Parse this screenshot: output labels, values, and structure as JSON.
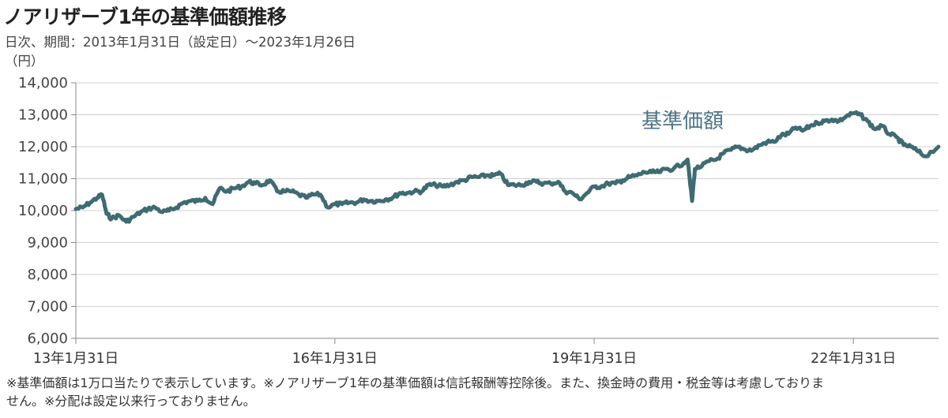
{
  "header": {
    "title": "ノアリザーブ1年の基準価額推移",
    "subtitle": "日次、期間：2013年1月31日（設定日）～2023年1月26日",
    "unit": "（円）"
  },
  "notes": [
    "※基準価額は1万口当たりで表示しています。※ノアリザーブ1年の基準価額は信託報酬等控除後。また、換金時の費用・税金等は考慮しておりま",
    "せん。※分配は設定以来行っておりません。"
  ],
  "colors": {
    "line": "#3f6b72",
    "grid": "#d0d0d0",
    "axis": "#888888"
  },
  "chart_data": {
    "type": "line",
    "title": "ノアリザーブ1年の基準価額推移",
    "ylabel": "（円）",
    "ylim": [
      6000,
      14000
    ],
    "yticks": [
      6000,
      7000,
      8000,
      9000,
      10000,
      11000,
      12000,
      13000,
      14000
    ],
    "ytick_labels": [
      "6,000",
      "7,000",
      "8,000",
      "9,000",
      "10,000",
      "11,000",
      "12,000",
      "13,000",
      "14,000"
    ],
    "xlim": [
      "2013-01-31",
      "2023-01-26"
    ],
    "xticks": [
      "2013-01-31",
      "2016-01-31",
      "2019-01-31",
      "2022-01-31"
    ],
    "xtick_labels": [
      "13年1月31日",
      "16年1月31日",
      "19年1月31日",
      "22年1月31日"
    ],
    "grid": "horizontal",
    "series": [
      {
        "name": "基準価額",
        "x": [
          "2013-01-31",
          "2013-03-01",
          "2013-04-01",
          "2013-05-01",
          "2013-05-22",
          "2013-06-10",
          "2013-07-01",
          "2013-08-01",
          "2013-09-01",
          "2013-10-01",
          "2013-11-01",
          "2013-12-01",
          "2014-01-01",
          "2014-02-01",
          "2014-03-01",
          "2014-04-01",
          "2014-05-01",
          "2014-06-01",
          "2014-07-01",
          "2014-08-01",
          "2014-09-01",
          "2014-10-01",
          "2014-11-01",
          "2014-12-01",
          "2015-01-01",
          "2015-02-01",
          "2015-03-01",
          "2015-04-01",
          "2015-05-01",
          "2015-06-01",
          "2015-07-01",
          "2015-08-01",
          "2015-09-01",
          "2015-10-01",
          "2015-11-01",
          "2015-12-01",
          "2016-01-01",
          "2016-02-01",
          "2016-03-01",
          "2016-04-01",
          "2016-05-01",
          "2016-06-01",
          "2016-07-01",
          "2016-08-01",
          "2016-09-01",
          "2016-10-01",
          "2016-11-01",
          "2016-12-01",
          "2017-01-01",
          "2017-02-01",
          "2017-03-01",
          "2017-04-01",
          "2017-05-01",
          "2017-06-01",
          "2017-07-01",
          "2017-08-01",
          "2017-09-01",
          "2017-10-01",
          "2017-11-01",
          "2017-12-01",
          "2018-01-01",
          "2018-02-01",
          "2018-03-01",
          "2018-04-01",
          "2018-05-01",
          "2018-06-01",
          "2018-07-01",
          "2018-08-01",
          "2018-09-01",
          "2018-10-01",
          "2018-11-01",
          "2018-12-01",
          "2019-01-01",
          "2019-02-01",
          "2019-03-01",
          "2019-04-01",
          "2019-05-01",
          "2019-06-01",
          "2019-07-01",
          "2019-08-01",
          "2019-09-01",
          "2019-10-01",
          "2019-11-01",
          "2019-12-01",
          "2020-01-01",
          "2020-02-15",
          "2020-03-01",
          "2020-03-20",
          "2020-04-01",
          "2020-05-01",
          "2020-06-01",
          "2020-07-01",
          "2020-08-01",
          "2020-09-01",
          "2020-10-01",
          "2020-11-01",
          "2020-12-01",
          "2021-01-01",
          "2021-02-01",
          "2021-03-01",
          "2021-04-01",
          "2021-05-01",
          "2021-06-01",
          "2021-07-01",
          "2021-08-01",
          "2021-09-01",
          "2021-10-01",
          "2021-11-01",
          "2021-12-01",
          "2022-01-01",
          "2022-02-01",
          "2022-03-01",
          "2022-04-01",
          "2022-05-01",
          "2022-06-01",
          "2022-07-01",
          "2022-08-01",
          "2022-09-01",
          "2022-10-01",
          "2022-11-01",
          "2022-12-01",
          "2023-01-26"
        ],
        "values": [
          10050,
          10100,
          10250,
          10400,
          10500,
          9900,
          9750,
          9850,
          9650,
          9800,
          9950,
          10050,
          10100,
          9950,
          10000,
          10100,
          10250,
          10300,
          10300,
          10400,
          10200,
          10700,
          10600,
          10700,
          10750,
          10900,
          10850,
          10800,
          10950,
          10600,
          10600,
          10600,
          10500,
          10400,
          10500,
          10500,
          10100,
          10200,
          10200,
          10250,
          10250,
          10350,
          10300,
          10300,
          10350,
          10400,
          10550,
          10550,
          10600,
          10600,
          10800,
          10800,
          10750,
          10800,
          10900,
          10950,
          11050,
          11050,
          11100,
          11100,
          11150,
          10800,
          10800,
          10800,
          10900,
          10900,
          10850,
          10850,
          10900,
          10600,
          10550,
          10350,
          10550,
          10750,
          10750,
          10850,
          10850,
          10950,
          11050,
          11100,
          11200,
          11200,
          11200,
          11300,
          11300,
          11500,
          11600,
          10300,
          11300,
          11400,
          11550,
          11600,
          11800,
          11900,
          12000,
          11900,
          11900,
          12050,
          12150,
          12150,
          12350,
          12400,
          12600,
          12500,
          12650,
          12750,
          12800,
          12850,
          12800,
          12950,
          13050,
          13000,
          12800,
          12550,
          12650,
          12400,
          12300,
          12050,
          12000,
          11850,
          11700,
          12000
        ]
      }
    ]
  }
}
